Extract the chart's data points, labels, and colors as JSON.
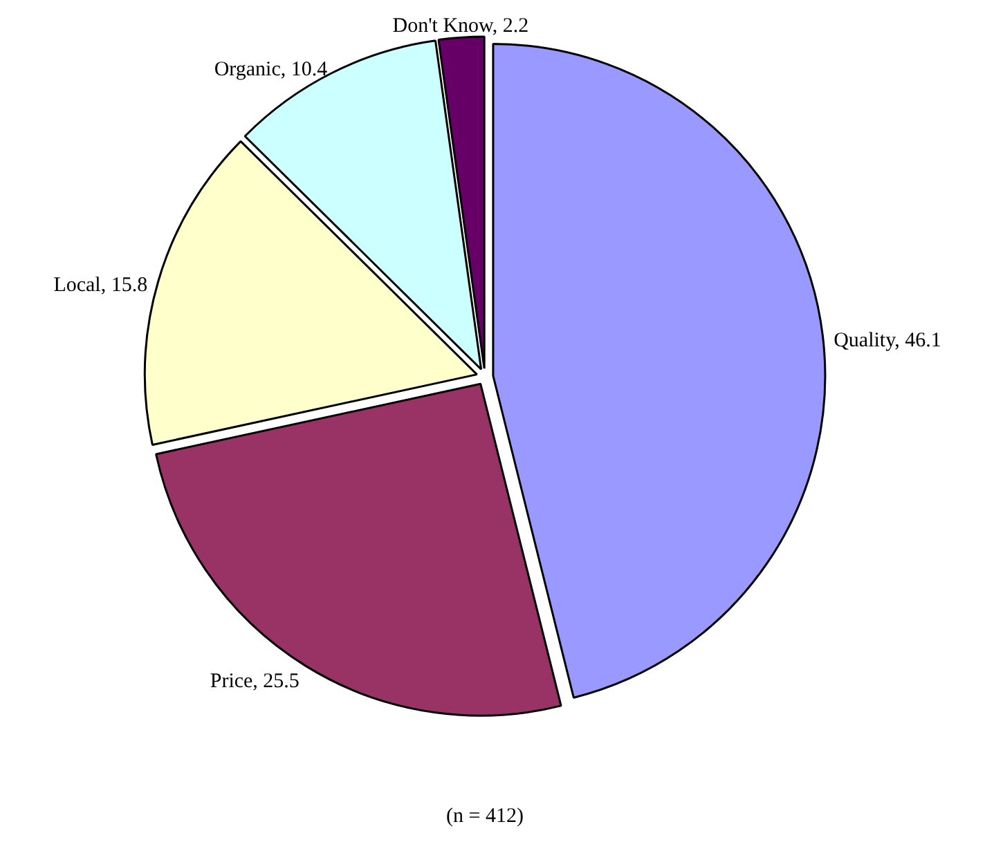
{
  "chart_data": {
    "type": "pie",
    "categories": [
      "Quality",
      "Price",
      "Local",
      "Organic",
      "Don't Know"
    ],
    "values": [
      46.1,
      25.5,
      15.8,
      10.4,
      2.2
    ],
    "colors": [
      "#9999ff",
      "#993366",
      "#ffffcc",
      "#ccffff",
      "#660066"
    ],
    "value_labels": [
      ", 46.1",
      ", 25.5",
      ", 15.8",
      ", 10.4",
      ", 2.2"
    ],
    "annotations": [
      "(n = 412)"
    ]
  }
}
